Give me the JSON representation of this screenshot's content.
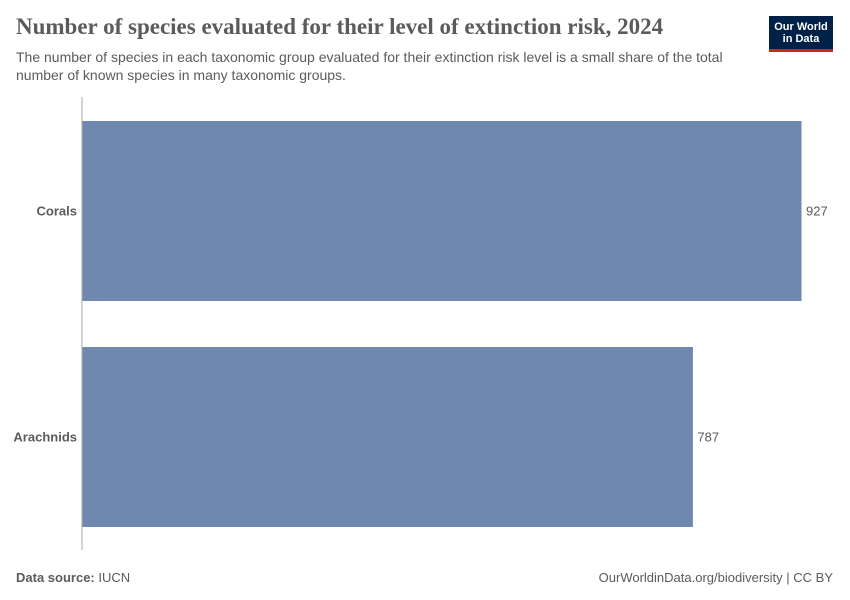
{
  "header": {
    "title": "Number of species evaluated for their level of extinction risk, 2024",
    "subtitle": "The number of species in each taxonomic group evaluated for their extinction risk level is a small share of the total number of known species in many taxonomic groups.",
    "logo_line1": "Our World",
    "logo_line2": "in Data"
  },
  "footer": {
    "source_label": "Data source:",
    "source_value": "IUCN",
    "link": "OurWorldinData.org/biodiversity | CC BY"
  },
  "colors": {
    "bar": "#6f88b0",
    "axis": "#aaaaaa",
    "logo_bg": "#002147",
    "logo_accent": "#ce261e"
  },
  "chart_data": {
    "type": "bar",
    "orientation": "horizontal",
    "categories": [
      "Corals",
      "Arachnids"
    ],
    "values": [
      927,
      787
    ],
    "data_labels": [
      "927",
      "787"
    ],
    "xlim": [
      0,
      927
    ],
    "grid": false,
    "legend": "none"
  }
}
